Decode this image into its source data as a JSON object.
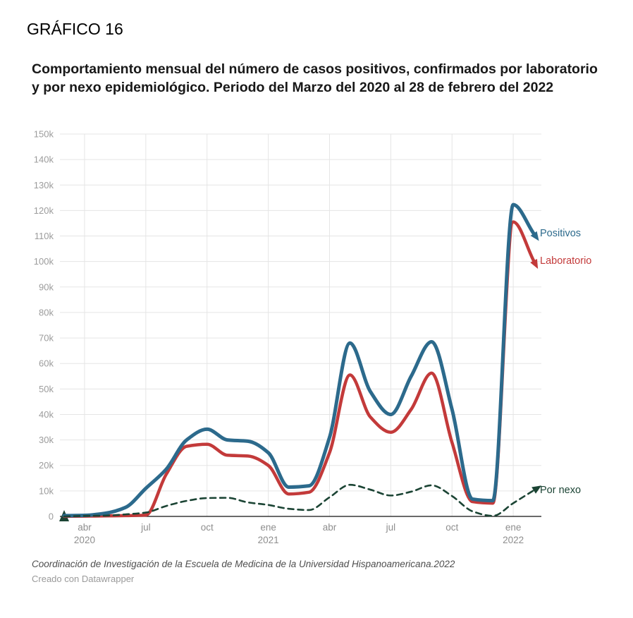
{
  "header": {
    "label": "GRÁFICO 16",
    "title": "Comportamiento mensual del número de casos positivos, confirmados por laboratorio y por nexo epidemiológico. Periodo del Marzo del 2020 al 28 de febrero del 2022"
  },
  "footer": {
    "source": "Coordinación de Investigación de la Escuela de Medicina de la Universidad Hispanoamericana.2022",
    "credit": "Creado con Datawrapper"
  },
  "chart_data": {
    "type": "line",
    "title": "Comportamiento mensual del número de casos positivos, confirmados por laboratorio y por nexo epidemiológico. Periodo del Marzo del 2020 al 28 de febrero del 2022",
    "xlabel": "",
    "ylabel": "",
    "ylim": [
      0,
      150000
    ],
    "grid": true,
    "legend_position": "right of line ends",
    "x": [
      "mar 2020",
      "abr 2020",
      "may 2020",
      "jun 2020",
      "jul 2020",
      "ago 2020",
      "sep 2020",
      "oct 2020",
      "nov 2020",
      "dic 2020",
      "ene 2021",
      "feb 2021",
      "mar 2021",
      "abr 2021",
      "may 2021",
      "jun 2021",
      "jul 2021",
      "ago 2021",
      "sep 2021",
      "oct 2021",
      "nov 2021",
      "dic 2021",
      "ene 2022",
      "feb 2022"
    ],
    "series": [
      {
        "name": "Positivos",
        "color": "#2c6a8c",
        "dash": null,
        "width": 5,
        "values": [
          300,
          400,
          1200,
          3500,
          11000,
          18500,
          30000,
          34200,
          30000,
          29500,
          25000,
          11500,
          12000,
          31000,
          68000,
          49000,
          40000,
          55000,
          68500,
          42000,
          6800,
          6200,
          122300,
          111000
        ]
      },
      {
        "name": "Laboratorio",
        "color": "#c33a3a",
        "dash": null,
        "width": 4.5,
        "values": [
          50,
          100,
          200,
          300,
          500,
          16500,
          27500,
          28300,
          24000,
          23700,
          20000,
          8800,
          9500,
          25000,
          55500,
          39000,
          33000,
          42000,
          56200,
          29000,
          5800,
          5200,
          115500,
          100300
        ]
      },
      {
        "name": "Por nexo",
        "color": "#1b4434",
        "dash": "8 6",
        "width": 2.6,
        "values": [
          0,
          200,
          300,
          800,
          1500,
          4100,
          6100,
          7200,
          7300,
          5500,
          4500,
          3000,
          2500,
          7500,
          12400,
          10500,
          8200,
          9700,
          12200,
          8000,
          2000,
          200,
          5200,
          10200
        ]
      }
    ],
    "yticks": [
      {
        "v": 0,
        "label": "0"
      },
      {
        "v": 10000,
        "label": "10k"
      },
      {
        "v": 20000,
        "label": "20k"
      },
      {
        "v": 30000,
        "label": "30k"
      },
      {
        "v": 40000,
        "label": "40k"
      },
      {
        "v": 50000,
        "label": "50k"
      },
      {
        "v": 60000,
        "label": "60k"
      },
      {
        "v": 70000,
        "label": "70k"
      },
      {
        "v": 80000,
        "label": "80k"
      },
      {
        "v": 90000,
        "label": "90k"
      },
      {
        "v": 100000,
        "label": "100k"
      },
      {
        "v": 110000,
        "label": "110k"
      },
      {
        "v": 120000,
        "label": "120k"
      },
      {
        "v": 130000,
        "label": "130k"
      },
      {
        "v": 140000,
        "label": "140k"
      },
      {
        "v": 150000,
        "label": "150k"
      }
    ],
    "xticks": [
      {
        "i": 1,
        "label": "abr",
        "year": "2020"
      },
      {
        "i": 4,
        "label": "jul"
      },
      {
        "i": 7,
        "label": "oct"
      },
      {
        "i": 10,
        "label": "ene",
        "year": "2021"
      },
      {
        "i": 13,
        "label": "abr"
      },
      {
        "i": 16,
        "label": "jul"
      },
      {
        "i": 19,
        "label": "oct"
      },
      {
        "i": 22,
        "label": "ene",
        "year": "2022"
      }
    ],
    "colors": {
      "grid": "#e5e5e5",
      "baseline": "#111111",
      "ytick_text": "#9c9c9c",
      "xtick_text": "#8e8e8e"
    }
  }
}
